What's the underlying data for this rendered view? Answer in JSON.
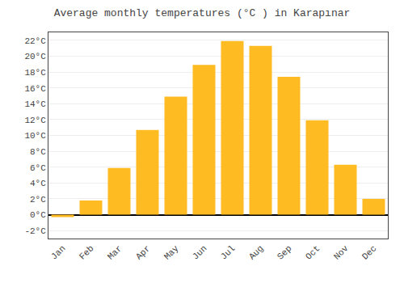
{
  "chart_data": {
    "type": "bar",
    "title": "Average monthly temperatures (°C ) in Karapınar",
    "categories": [
      "Jan",
      "Feb",
      "Mar",
      "Apr",
      "May",
      "Jun",
      "Jul",
      "Aug",
      "Sep",
      "Oct",
      "Nov",
      "Dec"
    ],
    "values": [
      -0.3,
      1.8,
      5.9,
      10.7,
      14.9,
      18.9,
      21.9,
      21.3,
      17.4,
      11.9,
      6.3,
      2.0
    ],
    "color": "#FFBB22",
    "ylim": [
      -3,
      23
    ],
    "yticks": [
      {
        "value": -2,
        "label": "-2°C"
      },
      {
        "value": 0,
        "label": "0°C"
      },
      {
        "value": 2,
        "label": "2°C"
      },
      {
        "value": 4,
        "label": "4°C"
      },
      {
        "value": 6,
        "label": "6°C"
      },
      {
        "value": 8,
        "label": "8°C"
      },
      {
        "value": 10,
        "label": "10°C"
      },
      {
        "value": 12,
        "label": "12°C"
      },
      {
        "value": 14,
        "label": "14°C"
      },
      {
        "value": 16,
        "label": "16°C"
      },
      {
        "value": 18,
        "label": "18°C"
      },
      {
        "value": 20,
        "label": "20°C"
      },
      {
        "value": 22,
        "label": "22°C"
      }
    ],
    "grid": true
  }
}
